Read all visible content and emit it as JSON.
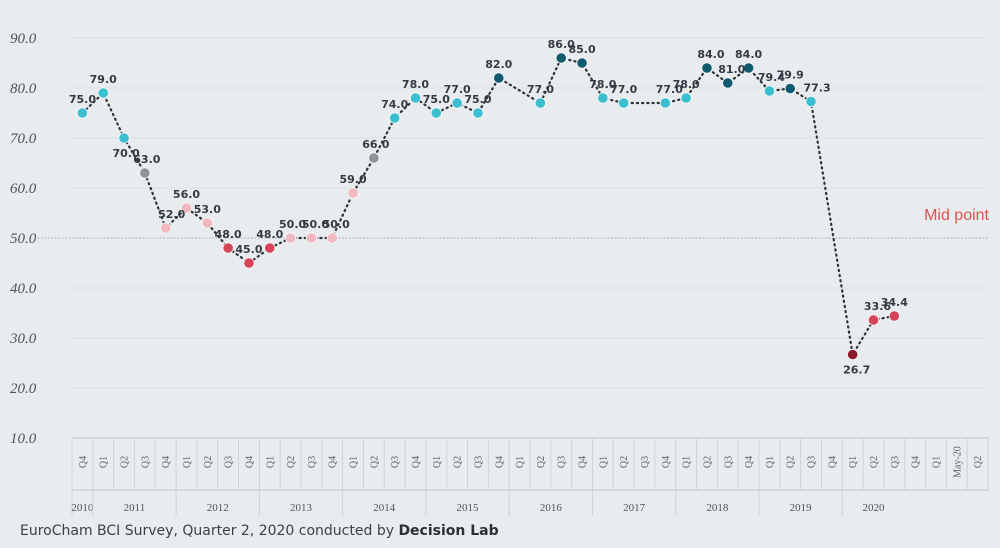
{
  "chart_data": {
    "type": "line",
    "title": "",
    "xlabel": "",
    "ylabel": "",
    "ylim": [
      10,
      90
    ],
    "yticks": [
      "10.0",
      "20.0",
      "30.0",
      "40.0",
      "50.0",
      "60.0",
      "70.0",
      "80.0",
      "90.0"
    ],
    "midpoint": {
      "value": 50,
      "label": "Mid point"
    },
    "quarters": [
      "Q4",
      "Q1",
      "Q2",
      "Q3",
      "Q4",
      "Q1",
      "Q2",
      "Q3",
      "Q4",
      "Q1",
      "Q2",
      "Q3",
      "Q4",
      "Q1",
      "Q2",
      "Q3",
      "Q4",
      "Q1",
      "Q2",
      "Q3",
      "Q4",
      "Q1",
      "Q2",
      "Q3",
      "Q4",
      "Q1",
      "Q2",
      "Q3",
      "Q4",
      "Q1",
      "Q2",
      "Q3",
      "Q4",
      "Q1",
      "Q2",
      "Q3",
      "Q4",
      "Q1",
      "Q2",
      "Q3",
      "Q4",
      "Q1",
      "May-20",
      "Q2"
    ],
    "years": [
      {
        "label": "2010",
        "start": 0,
        "end": 0
      },
      {
        "label": "2011",
        "start": 1,
        "end": 4
      },
      {
        "label": "2012",
        "start": 5,
        "end": 8
      },
      {
        "label": "2013",
        "start": 9,
        "end": 12
      },
      {
        "label": "2014",
        "start": 13,
        "end": 16
      },
      {
        "label": "2015",
        "start": 17,
        "end": 20
      },
      {
        "label": "2016",
        "start": 21,
        "end": 24
      },
      {
        "label": "2017",
        "start": 25,
        "end": 28
      },
      {
        "label": "2018",
        "start": 29,
        "end": 32
      },
      {
        "label": "2019",
        "start": 33,
        "end": 36
      },
      {
        "label": "2020",
        "start": 37,
        "end": 39
      }
    ],
    "points": [
      {
        "x": 0,
        "value": 75.0,
        "label": "75.0",
        "color": "#3bbfd0"
      },
      {
        "x": 1,
        "value": 79.0,
        "label": "79.0",
        "color": "#3bbfd0"
      },
      {
        "x": 2,
        "value": 70.0,
        "label": "70.0",
        "color": "#3bbfd0"
      },
      {
        "x": 3,
        "value": 63.0,
        "label": "63.0",
        "color": "#8f9498"
      },
      {
        "x": 4,
        "value": 52.0,
        "label": "52.0",
        "color": "#f2b8bf"
      },
      {
        "x": 5,
        "value": 56.0,
        "label": "56.0",
        "color": "#f2b8bf"
      },
      {
        "x": 6,
        "value": 53.0,
        "label": "53.0",
        "color": "#f2b8bf"
      },
      {
        "x": 7,
        "value": 48.0,
        "label": "48.0",
        "color": "#d84457"
      },
      {
        "x": 8,
        "value": 45.0,
        "label": "45.0",
        "color": "#d84457"
      },
      {
        "x": 9,
        "value": 48.0,
        "label": "48.0",
        "color": "#d84457"
      },
      {
        "x": 10,
        "value": 50.0,
        "label": "50.0",
        "color": "#f2b8bf"
      },
      {
        "x": 11,
        "value": 50.0,
        "label": "50.0",
        "color": "#f2b8bf"
      },
      {
        "x": 12,
        "value": 50.0,
        "label": "50.0",
        "color": "#f2b8bf"
      },
      {
        "x": 13,
        "value": 59.0,
        "label": "59.0",
        "color": "#f2b8bf"
      },
      {
        "x": 14,
        "value": 66.0,
        "label": "66.0",
        "color": "#8f9498"
      },
      {
        "x": 15,
        "value": 74.0,
        "label": "74.0",
        "color": "#3bbfd0"
      },
      {
        "x": 16,
        "value": 78.0,
        "label": "78.0",
        "color": "#3bbfd0"
      },
      {
        "x": 17,
        "value": 75.0,
        "label": "75.0",
        "color": "#3bbfd0"
      },
      {
        "x": 18,
        "value": 77.0,
        "label": "77.0",
        "color": "#3bbfd0"
      },
      {
        "x": 19,
        "value": 75.0,
        "label": "75.0",
        "color": "#3bbfd0"
      },
      {
        "x": 20,
        "value": 82.0,
        "label": "82.0",
        "color": "#0f5a6e"
      },
      {
        "x": 22,
        "value": 77.0,
        "label": "77.0",
        "color": "#3bbfd0"
      },
      {
        "x": 23,
        "value": 86.0,
        "label": "86.0",
        "color": "#0f5a6e"
      },
      {
        "x": 24,
        "value": 85.0,
        "label": "85.0",
        "color": "#0f5a6e"
      },
      {
        "x": 25,
        "value": 78.0,
        "label": "78.0",
        "color": "#3bbfd0"
      },
      {
        "x": 26,
        "value": 77.0,
        "label": "77.0",
        "color": "#3bbfd0"
      },
      {
        "x": 28,
        "value": 77.0,
        "label": "77.0",
        "color": "#3bbfd0"
      },
      {
        "x": 29,
        "value": 78.0,
        "label": "78.0",
        "color": "#3bbfd0"
      },
      {
        "x": 30,
        "value": 84.0,
        "label": "84.0",
        "color": "#0f5a6e"
      },
      {
        "x": 31,
        "value": 81.0,
        "label": "81.0",
        "color": "#0f5a6e"
      },
      {
        "x": 32,
        "value": 84.0,
        "label": "84.0",
        "color": "#0f5a6e"
      },
      {
        "x": 33,
        "value": 79.4,
        "label": "79.4",
        "color": "#3bbfd0"
      },
      {
        "x": 34,
        "value": 79.9,
        "label": "79.9",
        "color": "#0f5a6e"
      },
      {
        "x": 35,
        "value": 77.3,
        "label": "77.3",
        "color": "#3bbfd0"
      },
      {
        "x": 37,
        "value": 26.7,
        "label": "26.7",
        "color": "#8b1a2b"
      },
      {
        "x": 38,
        "value": 33.6,
        "label": "33.6",
        "color": "#d84457"
      },
      {
        "x": 39,
        "value": 34.4,
        "label": "34.4",
        "color": "#d84457"
      }
    ]
  },
  "caption": {
    "text": "EuroCham BCI Survey, Quarter 2, 2020 conducted by ",
    "bold": "Decision Lab"
  }
}
